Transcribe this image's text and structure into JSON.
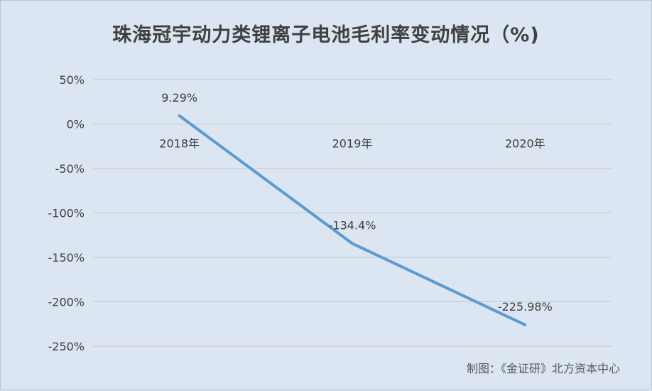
{
  "chart_data": {
    "type": "line",
    "title": "珠海冠宇动力类锂离子电池毛利率变动情况（%)",
    "categories": [
      "2018年",
      "2019年",
      "2020年"
    ],
    "series": [
      {
        "values": [
          9.29,
          -134.4,
          -225.98
        ],
        "labels": [
          "9.29%",
          "-134.4%",
          "-225.98%"
        ],
        "color": "#5b9bd5"
      }
    ],
    "ylim": [
      -250,
      50
    ],
    "yticks": [
      50,
      0,
      -50,
      -100,
      -150,
      -200,
      -250
    ],
    "ytick_labels": [
      "50%",
      "0%",
      "-50%",
      "-100%",
      "-150%",
      "-200%",
      "-250%"
    ],
    "grid": true,
    "xlabel": "",
    "ylabel": ""
  },
  "source_note": "制图：《金证研》北方资本中心",
  "colors": {
    "background": "#dce6f2",
    "gridline": "#c7c7c7",
    "text": "#404040",
    "line": "#5b9bd5"
  }
}
